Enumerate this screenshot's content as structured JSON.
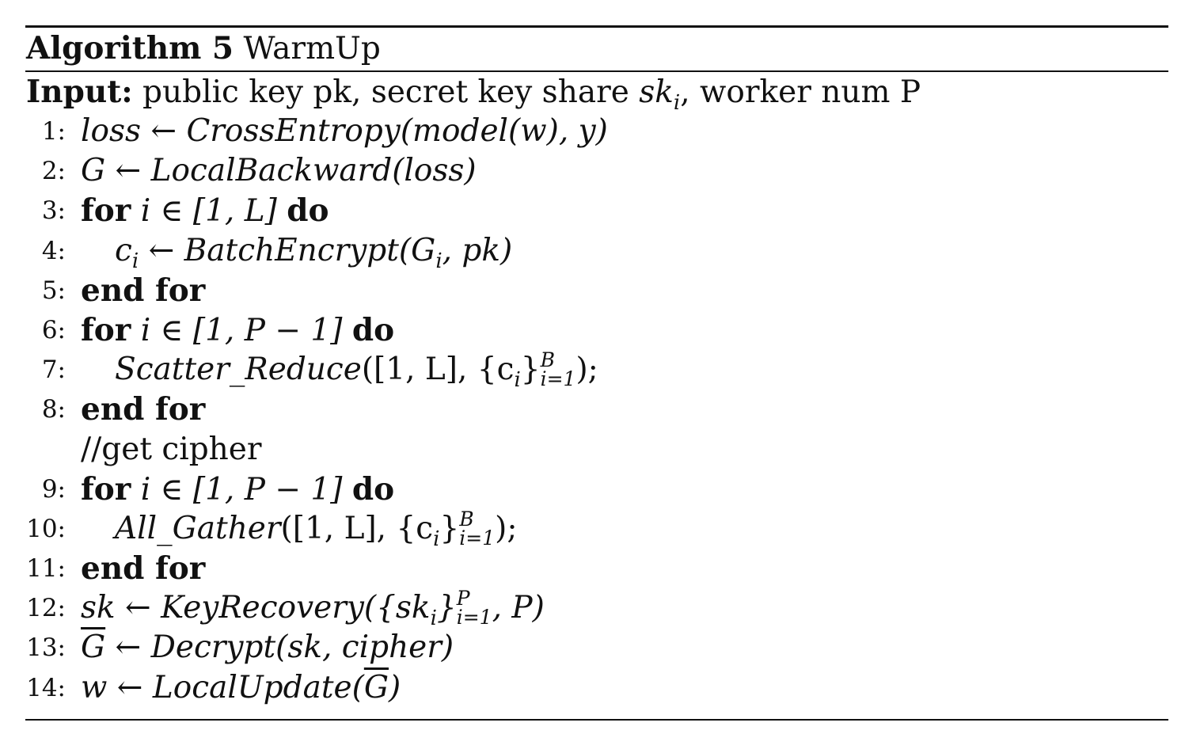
{
  "header": {
    "label": "Algorithm 5",
    "title": "WarmUp"
  },
  "input": {
    "label": "Input:",
    "text_prefix": "public key pk, secret key share ",
    "sk_var": "sk",
    "sk_sub": "i",
    "text_suffix": ", worker num P"
  },
  "lines": [
    {
      "no": "1:",
      "text": "loss ← CrossEntropy(model(w), y)"
    },
    {
      "no": "2:",
      "text": "G ← LocalBackward(loss)"
    },
    {
      "no": "3:",
      "kw1": "for",
      "text": "i ∈ [1, L]",
      "kw2": "do"
    },
    {
      "no": "4:",
      "text_var": "c",
      "text_sub": "i",
      "text_rest": " ← BatchEncrypt(G",
      "text_sub2": "i",
      "text_end": ", pk)"
    },
    {
      "no": "5:",
      "kw1": "end for"
    },
    {
      "no": "6:",
      "kw1": "for",
      "text": "i ∈ [1, P − 1]",
      "kw2": "do"
    },
    {
      "no": "7:",
      "func": "Scatter_Reduce",
      "args": "([1, L], {c",
      "sub": "i",
      "close": "}",
      "sup": "B",
      "sub2": "i=1",
      "end": ");"
    },
    {
      "no": "8:",
      "kw1": "end for"
    },
    {
      "no": "",
      "comment": "//get cipher"
    },
    {
      "no": "9:",
      "kw1": "for",
      "text": "i ∈ [1, P − 1]",
      "kw2": "do"
    },
    {
      "no": "10:",
      "func": "All_Gather",
      "args": "([1, L], {c",
      "sub": "i",
      "close": "}",
      "sup": "B",
      "sub2": "i=1",
      "end": ");"
    },
    {
      "no": "11:",
      "kw1": "end for"
    },
    {
      "no": "12:",
      "pre": "sk ← KeyRecovery({sk",
      "sub": "i",
      "close": "}",
      "sup": "P",
      "sub2": "i=1",
      "end": ", P)"
    },
    {
      "no": "13:",
      "bar": "G",
      "rest": " ← Decrypt(sk, cipher)"
    },
    {
      "no": "14:",
      "pre": "w ← LocalUpdate(",
      "bar": "G",
      "end": ")"
    }
  ]
}
